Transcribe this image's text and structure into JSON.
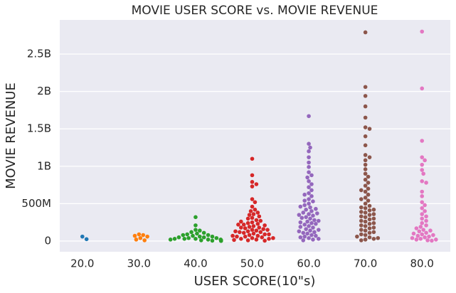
{
  "chart_data": {
    "type": "swarm",
    "title": "MOVIE USER SCORE vs. MOVIE REVENUE",
    "x_label": "USER SCORE(10\"s)",
    "y_label": "MOVIE REVENUE",
    "categories": [
      "20.0",
      "30.0",
      "40.0",
      "50.0",
      "60.0",
      "70.0",
      "80.0"
    ],
    "colors": [
      "#1f77b4",
      "#ff7f0e",
      "#2ca02c",
      "#d62728",
      "#9467bd",
      "#8c564b",
      "#e377c2"
    ],
    "values": [
      [
        60000000.0,
        25000000.0
      ],
      [
        90000000.0,
        80000000.0,
        70000000.0,
        60000000.0,
        40000000.0,
        20000000.0,
        10000000.0
      ],
      [
        320000000.0,
        210000000.0,
        150000000.0,
        140000000.0,
        120000000.0,
        110000000.0,
        100000000.0,
        90000000.0,
        80000000.0,
        80000000.0,
        70000000.0,
        60000000.0,
        60000000.0,
        50000000.0,
        50000000.0,
        40000000.0,
        40000000.0,
        30000000.0,
        30000000.0,
        30000000.0,
        20000000.0,
        20000000.0,
        20000000.0,
        10000000.0,
        10000000.0,
        10000000.0,
        5000000.0,
        5000000.0,
        3000000.0,
        2000000.0
      ],
      [
        1100000000.0,
        880000000.0,
        790000000.0,
        760000000.0,
        730000000.0,
        560000000.0,
        520000000.0,
        460000000.0,
        420000000.0,
        400000000.0,
        380000000.0,
        360000000.0,
        350000000.0,
        330000000.0,
        310000000.0,
        300000000.0,
        280000000.0,
        270000000.0,
        250000000.0,
        240000000.0,
        230000000.0,
        220000000.0,
        200000000.0,
        190000000.0,
        180000000.0,
        170000000.0,
        160000000.0,
        150000000.0,
        140000000.0,
        130000000.0,
        120000000.0,
        110000000.0,
        100000000.0,
        90000000.0,
        80000000.0,
        70000000.0,
        60000000.0,
        50000000.0,
        40000000.0,
        30000000.0,
        20000000.0,
        10000000.0,
        5000000.0,
        260000000.0,
        210000000.0,
        180000000.0,
        150000000.0,
        120000000.0,
        90000000.0,
        60000000.0,
        30000000.0,
        15000000.0,
        220000000.0,
        130000000.0,
        70000000.0,
        40000000.0
      ],
      [
        1670000000.0,
        1300000000.0,
        1250000000.0,
        1200000000.0,
        1120000000.0,
        1050000000.0,
        990000000.0,
        920000000.0,
        880000000.0,
        850000000.0,
        800000000.0,
        760000000.0,
        720000000.0,
        680000000.0,
        640000000.0,
        600000000.0,
        560000000.0,
        530000000.0,
        500000000.0,
        480000000.0,
        450000000.0,
        420000000.0,
        400000000.0,
        380000000.0,
        360000000.0,
        340000000.0,
        320000000.0,
        300000000.0,
        280000000.0,
        260000000.0,
        240000000.0,
        220000000.0,
        200000000.0,
        180000000.0,
        160000000.0,
        140000000.0,
        120000000.0,
        100000000.0,
        80000000.0,
        60000000.0,
        40000000.0,
        20000000.0,
        10000000.0,
        430000000.0,
        370000000.0,
        310000000.0,
        270000000.0,
        230000000.0,
        190000000.0,
        150000000.0,
        110000000.0,
        70000000.0,
        30000000.0,
        620000000.0,
        540000000.0,
        460000000.0,
        350000000.0,
        250000000.0,
        130000000.0,
        50000000.0
      ],
      [
        2790000000.0,
        2060000000.0,
        1940000000.0,
        1800000000.0,
        1650000000.0,
        1520000000.0,
        1500000000.0,
        1400000000.0,
        1280000000.0,
        1150000000.0,
        1120000000.0,
        1080000000.0,
        1020000000.0,
        960000000.0,
        900000000.0,
        860000000.0,
        820000000.0,
        780000000.0,
        740000000.0,
        700000000.0,
        660000000.0,
        620000000.0,
        580000000.0,
        540000000.0,
        500000000.0,
        470000000.0,
        440000000.0,
        410000000.0,
        380000000.0,
        350000000.0,
        320000000.0,
        290000000.0,
        260000000.0,
        230000000.0,
        200000000.0,
        170000000.0,
        140000000.0,
        110000000.0,
        80000000.0,
        50000000.0,
        20000000.0,
        10000000.0,
        450000000.0,
        390000000.0,
        330000000.0,
        270000000.0,
        210000000.0,
        150000000.0,
        90000000.0,
        30000000.0,
        680000000.0,
        560000000.0,
        420000000.0,
        300000000.0,
        180000000.0,
        60000000.0,
        240000000.0,
        120000000.0,
        40000000.0,
        360000000.0
      ],
      [
        2800000000.0,
        2040000000.0,
        1340000000.0,
        1120000000.0,
        1080000000.0,
        1020000000.0,
        950000000.0,
        900000000.0,
        800000000.0,
        780000000.0,
        660000000.0,
        600000000.0,
        520000000.0,
        480000000.0,
        440000000.0,
        400000000.0,
        360000000.0,
        330000000.0,
        300000000.0,
        270000000.0,
        240000000.0,
        210000000.0,
        190000000.0,
        170000000.0,
        150000000.0,
        130000000.0,
        110000000.0,
        90000000.0,
        70000000.0,
        50000000.0,
        30000000.0,
        20000000.0,
        10000000.0,
        5000000.0,
        140000000.0,
        100000000.0,
        60000000.0,
        40000000.0,
        20000000.0,
        80000000.0
      ]
    ],
    "ylim": [
      -143000000.0,
      2956000000.0
    ],
    "yticks": [
      0,
      {
        "value": 500000000.0,
        "label": "500M"
      },
      {
        "value": 1000000000.0,
        "label": "1B"
      },
      {
        "value": 1500000000.0,
        "label": "1.5B"
      },
      {
        "value": 2000000000.0,
        "label": "2B"
      },
      {
        "value": 2500000000.0,
        "label": "2.5B"
      }
    ],
    "grid": true
  }
}
